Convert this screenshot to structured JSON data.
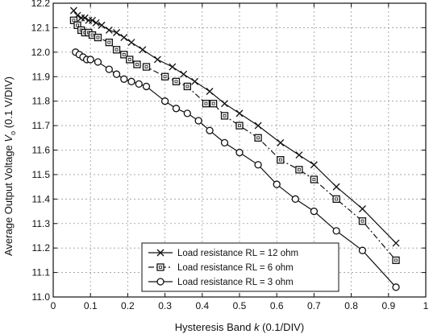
{
  "chart_data": {
    "type": "line",
    "title": "",
    "xlabel_parts": [
      "Hysteresis Band ",
      "k",
      " (0.1/DIV)"
    ],
    "ylabel_parts": [
      "Average Output Voltage ",
      "V",
      "o",
      " (0.1 V/DIV)"
    ],
    "xlim": [
      0,
      1
    ],
    "ylim": [
      11.0,
      12.2
    ],
    "xticks": [
      0,
      0.1,
      0.2,
      0.3,
      0.4,
      0.5,
      0.6,
      0.7,
      0.8,
      0.9,
      1
    ],
    "xtick_labels": [
      "0",
      "0.1",
      "0.2",
      "0.3",
      "0.4",
      "0.5",
      "0.6",
      "0.7",
      "0.8",
      "0.9",
      "1"
    ],
    "yticks": [
      11.0,
      11.1,
      11.2,
      11.3,
      11.4,
      11.5,
      11.6,
      11.7,
      11.8,
      11.9,
      12.0,
      12.1,
      12.2
    ],
    "ytick_labels": [
      "11.0",
      "11.1",
      "11.2",
      "11.3",
      "11.4",
      "11.5",
      "11.6",
      "11.7",
      "11.8",
      "11.9",
      "12.0",
      "12.1",
      "12.2"
    ],
    "grid": true,
    "legend_position": "bottom-center",
    "series": [
      {
        "name": "Load resistance RL = 12 ohm",
        "marker": "x",
        "line_style": "solid",
        "x": [
          0.055,
          0.065,
          0.075,
          0.085,
          0.095,
          0.105,
          0.115,
          0.13,
          0.15,
          0.17,
          0.19,
          0.21,
          0.24,
          0.28,
          0.32,
          0.35,
          0.38,
          0.42,
          0.46,
          0.5,
          0.55,
          0.61,
          0.66,
          0.7,
          0.76,
          0.83,
          0.92
        ],
        "y": [
          12.17,
          12.15,
          12.14,
          12.14,
          12.13,
          12.13,
          12.12,
          12.11,
          12.09,
          12.08,
          12.06,
          12.04,
          12.01,
          11.97,
          11.94,
          11.91,
          11.88,
          11.84,
          11.79,
          11.75,
          11.7,
          11.63,
          11.58,
          11.54,
          11.45,
          11.36,
          11.22
        ]
      },
      {
        "name": "Load resistance RL = 6 ohm",
        "marker": "square",
        "line_style": "dashdot",
        "x": [
          0.055,
          0.065,
          0.075,
          0.085,
          0.095,
          0.105,
          0.12,
          0.15,
          0.17,
          0.19,
          0.205,
          0.225,
          0.25,
          0.3,
          0.33,
          0.36,
          0.41,
          0.43,
          0.46,
          0.5,
          0.55,
          0.61,
          0.66,
          0.7,
          0.76,
          0.83,
          0.92
        ],
        "y": [
          12.13,
          12.11,
          12.09,
          12.08,
          12.08,
          12.07,
          12.06,
          12.04,
          12.01,
          11.99,
          11.97,
          11.95,
          11.94,
          11.9,
          11.88,
          11.86,
          11.79,
          11.79,
          11.74,
          11.7,
          11.65,
          11.56,
          11.52,
          11.48,
          11.4,
          11.31,
          11.15
        ]
      },
      {
        "name": "Load resistance RL = 3 ohm",
        "marker": "circle",
        "line_style": "solid",
        "x": [
          0.06,
          0.07,
          0.08,
          0.09,
          0.1,
          0.12,
          0.15,
          0.17,
          0.19,
          0.21,
          0.23,
          0.25,
          0.3,
          0.33,
          0.36,
          0.39,
          0.42,
          0.46,
          0.5,
          0.55,
          0.6,
          0.65,
          0.7,
          0.76,
          0.83,
          0.92
        ],
        "y": [
          12.0,
          11.99,
          11.98,
          11.97,
          11.97,
          11.96,
          11.93,
          11.91,
          11.89,
          11.88,
          11.87,
          11.86,
          11.8,
          11.77,
          11.75,
          11.72,
          11.68,
          11.63,
          11.59,
          11.54,
          11.46,
          11.4,
          11.35,
          11.27,
          11.19,
          11.04
        ]
      }
    ]
  }
}
